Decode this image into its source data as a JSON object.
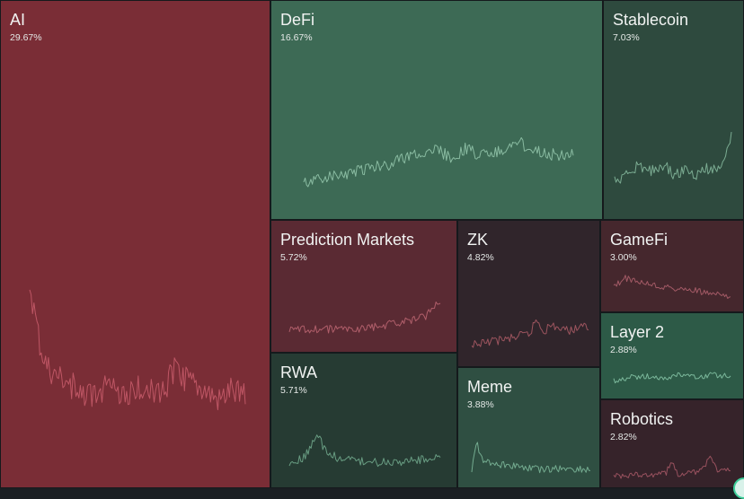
{
  "chart_data": {
    "type": "treemap",
    "unit": "%",
    "items": [
      {
        "name": "AI",
        "share": 29.67,
        "share_label": "29.67%",
        "trend": "down",
        "color": "#7a2d36",
        "line": "#d06070"
      },
      {
        "name": "DeFi",
        "share": 16.67,
        "share_label": "16.67%",
        "trend": "up",
        "color": "#3d6a55",
        "line": "#9cd0b4"
      },
      {
        "name": "Stablecoin",
        "share": 7.03,
        "share_label": "7.03%",
        "trend": "up",
        "color": "#2e4a3e",
        "line": "#8fc4a8"
      },
      {
        "name": "Prediction Markets",
        "share": 5.72,
        "share_label": "5.72%",
        "trend": "down",
        "color": "#5a2a33",
        "line": "#c56b78"
      },
      {
        "name": "ZK",
        "share": 4.82,
        "share_label": "4.82%",
        "trend": "down",
        "color": "#30252b",
        "line": "#b8606c"
      },
      {
        "name": "GameFi",
        "share": 3.0,
        "share_label": "3.00%",
        "trend": "down",
        "color": "#45272d",
        "line": "#b96673"
      },
      {
        "name": "Layer 2",
        "share": 2.88,
        "share_label": "2.88%",
        "trend": "up",
        "color": "#2d5a47",
        "line": "#8fd0b0"
      },
      {
        "name": "RWA",
        "share": 5.71,
        "share_label": "5.71%",
        "trend": "up",
        "color": "#263b33",
        "line": "#79b596"
      },
      {
        "name": "Meme",
        "share": 3.88,
        "share_label": "3.88%",
        "trend": "up",
        "color": "#2f4f42",
        "line": "#85c2a2"
      },
      {
        "name": "Robotics",
        "share": 2.82,
        "share_label": "2.82%",
        "trend": "down",
        "color": "#36232a",
        "line": "#b25d6b"
      }
    ]
  }
}
